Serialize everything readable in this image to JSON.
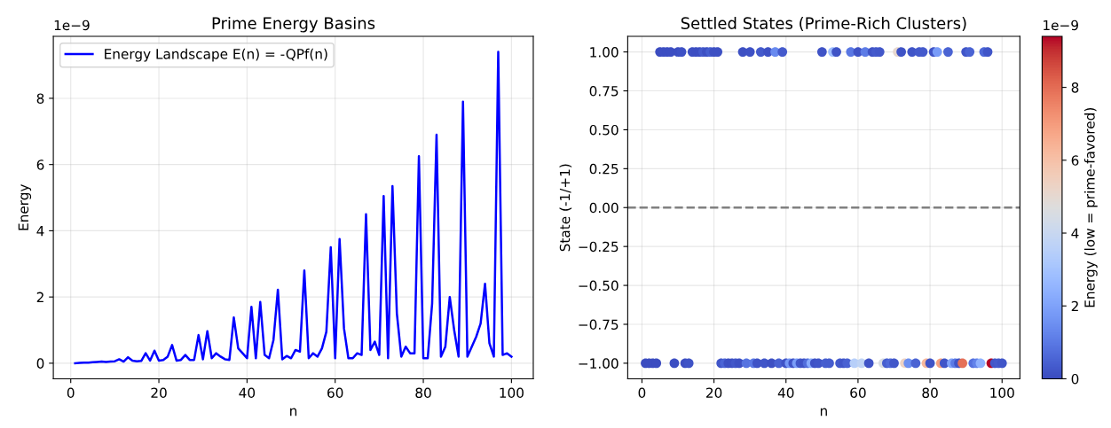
{
  "chart_data": [
    {
      "type": "line",
      "title": "Prime Energy Basins",
      "xlabel": "n",
      "ylabel": "Energy",
      "annotations": [
        "1e−9"
      ],
      "x": [
        1,
        2,
        3,
        4,
        5,
        6,
        7,
        8,
        9,
        10,
        11,
        12,
        13,
        14,
        15,
        16,
        17,
        18,
        19,
        20,
        21,
        22,
        23,
        24,
        25,
        26,
        27,
        28,
        29,
        30,
        31,
        32,
        33,
        34,
        35,
        36,
        37,
        38,
        39,
        40,
        41,
        42,
        43,
        44,
        45,
        46,
        47,
        48,
        49,
        50,
        51,
        52,
        53,
        54,
        55,
        56,
        57,
        58,
        59,
        60,
        61,
        62,
        63,
        64,
        65,
        66,
        67,
        68,
        69,
        70,
        71,
        72,
        73,
        74,
        75,
        76,
        77,
        78,
        79,
        80,
        81,
        82,
        83,
        84,
        85,
        86,
        87,
        88,
        89,
        90,
        91,
        92,
        93,
        94,
        95,
        96,
        97,
        98,
        99,
        100
      ],
      "series": [
        {
          "name": "Energy Landscape E(n) = -QPf(n)",
          "color": "#0000ff",
          "values": [
            0,
            0.01,
            0.02,
            0.02,
            0.03,
            0.04,
            0.05,
            0.04,
            0.05,
            0.06,
            0.12,
            0.05,
            0.18,
            0.08,
            0.06,
            0.07,
            0.3,
            0.08,
            0.38,
            0.08,
            0.1,
            0.2,
            0.55,
            0.08,
            0.1,
            0.25,
            0.1,
            0.1,
            0.85,
            0.12,
            0.97,
            0.15,
            0.3,
            0.2,
            0.12,
            0.1,
            1.38,
            0.45,
            0.3,
            0.15,
            1.7,
            0.15,
            1.85,
            0.25,
            0.15,
            0.7,
            2.22,
            0.12,
            0.22,
            0.15,
            0.4,
            0.35,
            2.8,
            0.15,
            0.3,
            0.2,
            0.45,
            0.95,
            3.5,
            0.15,
            3.75,
            1.05,
            0.15,
            0.15,
            0.3,
            0.25,
            4.5,
            0.4,
            0.65,
            0.25,
            5.05,
            0.15,
            5.35,
            1.5,
            0.2,
            0.5,
            0.3,
            0.3,
            6.25,
            0.15,
            0.15,
            1.8,
            6.9,
            0.2,
            0.5,
            2.0,
            1.0,
            0.2,
            7.9,
            0.2,
            0.5,
            0.8,
            1.2,
            2.4,
            0.6,
            0.2,
            9.4,
            0.25,
            0.3,
            0.2
          ]
        }
      ],
      "xlim": [
        -3.95,
        104.95
      ],
      "xticks": [
        0,
        20,
        40,
        60,
        80,
        100
      ],
      "ylim": [
        -0.47,
        9.87
      ],
      "yticks": [
        0,
        2,
        4,
        6,
        8
      ],
      "grid": true,
      "legend": "top left"
    },
    {
      "type": "scatter",
      "title": "Settled States (Prime-Rich Clusters)",
      "xlabel": "n",
      "ylabel": "State (-1/+1)",
      "clabel": "Energy (low = prime-favored)",
      "annotations": [
        "1e−9"
      ],
      "x": [
        1,
        2,
        3,
        4,
        5,
        6,
        7,
        8,
        9,
        10,
        11,
        12,
        13,
        14,
        15,
        16,
        17,
        18,
        19,
        20,
        21,
        22,
        23,
        24,
        25,
        26,
        27,
        28,
        29,
        30,
        31,
        32,
        33,
        34,
        35,
        36,
        37,
        38,
        39,
        40,
        41,
        42,
        43,
        44,
        45,
        46,
        47,
        48,
        49,
        50,
        51,
        52,
        53,
        54,
        55,
        56,
        57,
        58,
        59,
        60,
        61,
        62,
        63,
        64,
        65,
        66,
        67,
        68,
        69,
        70,
        71,
        72,
        73,
        74,
        75,
        76,
        77,
        78,
        79,
        80,
        81,
        82,
        83,
        84,
        85,
        86,
        87,
        88,
        89,
        90,
        91,
        92,
        93,
        94,
        95,
        96,
        97,
        98,
        99,
        100
      ],
      "values": [
        -1,
        -1,
        -1,
        -1,
        1,
        1,
        1,
        1,
        -1,
        1,
        1,
        -1,
        -1,
        1,
        1,
        1,
        1,
        1,
        1,
        1,
        1,
        -1,
        -1,
        -1,
        -1,
        -1,
        -1,
        1,
        -1,
        1,
        -1,
        -1,
        1,
        -1,
        1,
        -1,
        1,
        -1,
        1,
        -1,
        -1,
        -1,
        -1,
        -1,
        -1,
        -1,
        -1,
        -1,
        -1,
        1,
        -1,
        -1,
        1,
        1,
        -1,
        -1,
        -1,
        1,
        -1,
        1,
        -1,
        1,
        -1,
        1,
        1,
        1,
        -1,
        -1,
        -1,
        -1,
        1,
        1,
        -1,
        -1,
        1,
        -1,
        1,
        1,
        -1,
        -1,
        1,
        1,
        -1,
        -1,
        1,
        -1,
        -1,
        -1,
        -1,
        1,
        1,
        -1,
        -1,
        -1,
        1,
        1,
        -1,
        -1,
        -1,
        -1
      ],
      "cvalues": [
        0,
        0.01,
        0.02,
        0.02,
        0.03,
        0.04,
        0.05,
        0.04,
        0.05,
        0.06,
        0.12,
        0.05,
        0.18,
        0.08,
        0.06,
        0.07,
        0.3,
        0.08,
        0.38,
        0.08,
        0.1,
        0.2,
        0.55,
        0.08,
        0.1,
        0.25,
        0.1,
        0.1,
        0.85,
        0.12,
        0.97,
        0.15,
        0.3,
        0.2,
        0.12,
        0.1,
        1.38,
        0.45,
        0.3,
        0.15,
        1.7,
        0.15,
        1.85,
        0.25,
        0.15,
        0.7,
        2.22,
        0.12,
        0.22,
        0.15,
        0.4,
        0.35,
        2.8,
        0.15,
        0.3,
        0.2,
        0.45,
        0.95,
        3.5,
        0.15,
        3.75,
        1.05,
        0.15,
        0.15,
        0.3,
        0.25,
        4.5,
        0.4,
        0.65,
        0.25,
        5.05,
        0.15,
        5.35,
        1.5,
        0.2,
        0.5,
        0.3,
        0.3,
        6.25,
        0.15,
        0.15,
        1.8,
        6.9,
        0.2,
        0.5,
        2.0,
        1.0,
        0.2,
        7.9,
        0.2,
        0.5,
        0.8,
        1.2,
        2.4,
        0.6,
        0.2,
        9.4,
        0.25,
        0.3,
        0.2
      ],
      "clim": [
        0,
        9.4
      ],
      "cticks": [
        0,
        2,
        4,
        6,
        8
      ],
      "xlim": [
        -3.95,
        104.95
      ],
      "xticks": [
        0,
        20,
        40,
        60,
        80,
        100
      ],
      "ylim": [
        -1.1,
        1.1
      ],
      "yticks": [
        {
          "value": -1,
          "label": "−1.00"
        },
        {
          "value": -0.75,
          "label": "−0.75"
        },
        {
          "value": -0.5,
          "label": "−0.50"
        },
        {
          "value": -0.25,
          "label": "−0.25"
        },
        {
          "value": 0,
          "label": "0.00"
        },
        {
          "value": 0.25,
          "label": "0.25"
        },
        {
          "value": 0.5,
          "label": "0.50"
        },
        {
          "value": 0.75,
          "label": "0.75"
        },
        {
          "value": 1,
          "label": "1.00"
        }
      ],
      "ref_lines": [
        {
          "axis": "y",
          "value": 0,
          "color": "#808080",
          "line_style": "dashed"
        }
      ],
      "grid": true,
      "marker": "circle"
    }
  ]
}
